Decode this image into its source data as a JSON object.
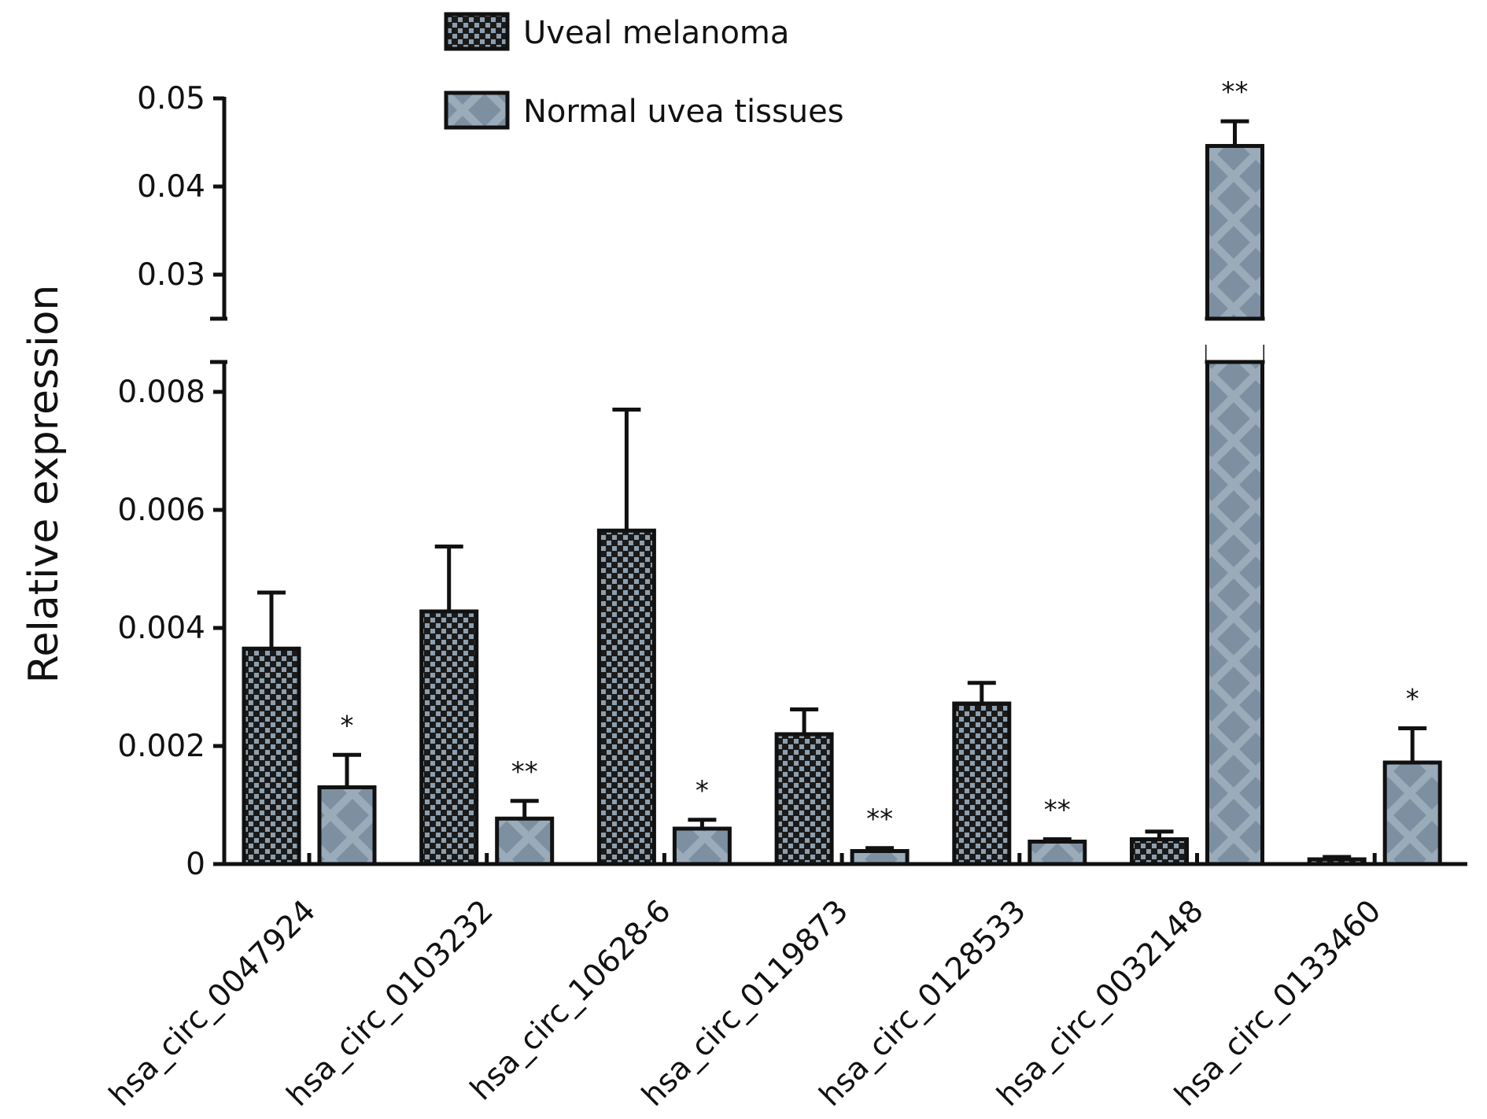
{
  "chart_data": {
    "type": "bar",
    "ylabel": "Relative expression",
    "xlabel": "",
    "y_axis_break": [
      0.0085,
      0.025
    ],
    "ylim_lower": [
      0,
      0.0085
    ],
    "ylim_upper": [
      0.025,
      0.052
    ],
    "yticks_lower": [
      "0",
      "0.002",
      "0.004",
      "0.006",
      "0.008"
    ],
    "yticks_upper": [
      "0.03",
      "0.04",
      "0.05"
    ],
    "legend_position": "top-center",
    "categories": [
      "hsa_circ_0047924",
      "hsa_circ_0103232",
      "hsa_circ_10628-6",
      "hsa_circ_0119873",
      "hsa_circ_0128533",
      "hsa_circ_0032148",
      "hsa_circ_0133460"
    ],
    "series": [
      {
        "name": "Uveal melanoma",
        "pattern": "checkerboard",
        "color": "#1c1c1c",
        "values": [
          0.00365,
          0.00428,
          0.00565,
          0.0022,
          0.00272,
          0.00042,
          8e-05
        ],
        "errors": [
          0.00095,
          0.0011,
          0.00205,
          0.00042,
          0.00035,
          0.00013,
          4e-05
        ]
      },
      {
        "name": "Normal uvea tissues",
        "pattern": "crosshatch",
        "color": "#7f92a3",
        "values": [
          0.0013,
          0.00077,
          0.0006,
          0.00022,
          0.00038,
          0.0446,
          0.00172
        ],
        "errors": [
          0.00055,
          0.0003,
          0.00015,
          5e-05,
          4e-05,
          0.0028,
          0.00058
        ]
      }
    ],
    "significance": [
      "*",
      "**",
      "*",
      "**",
      "**",
      "**",
      "*"
    ]
  }
}
